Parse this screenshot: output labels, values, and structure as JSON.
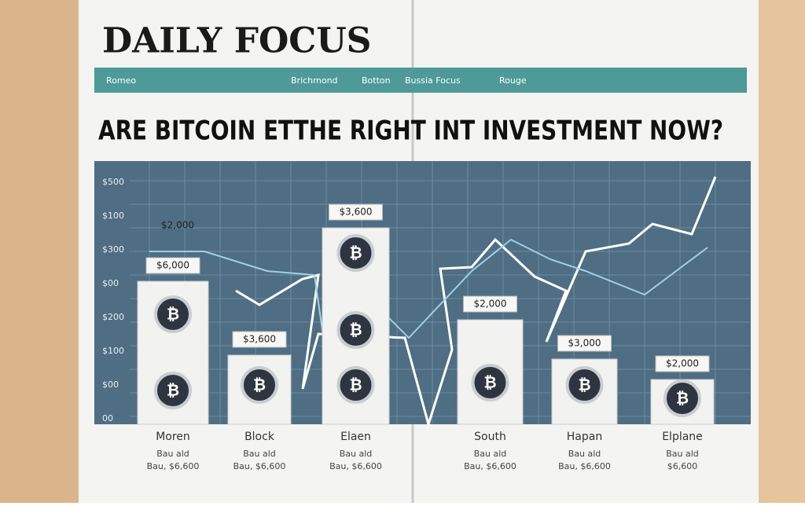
{
  "header": {
    "title": "DAILY FOCUS",
    "nav": [
      "Romeo",
      "Brichmond",
      "Botton",
      "Bussia Focus",
      "Rouge"
    ]
  },
  "headline": "ARE BITCOIN ETTHE RIGHT INT INVESTMENT NOW?",
  "chart": {
    "coin_symbol": "₿",
    "axis_labels": [
      "$500",
      "$100",
      "$300",
      "$00",
      "$200",
      "$100",
      "$00",
      "00"
    ],
    "bars": [
      {
        "label": "Moren",
        "value_label": "$6,000",
        "note": "Bau ald",
        "sub": "Bau, $6,600"
      },
      {
        "label": "Block",
        "value_label": "$3,600",
        "note": "Bau ald",
        "sub": "Bau, $6,600"
      },
      {
        "label": "Elaen",
        "value_label": "$3,600",
        "note": "Bau ald",
        "sub": "Bau, $6,600"
      },
      {
        "label": "South",
        "value_label": "$2,000",
        "note": "Bau ald",
        "sub": "Bau, $6,600"
      },
      {
        "label": "Hapan",
        "value_label": "$3,000",
        "note": "Bau ald",
        "sub": "Bau, $6,600"
      },
      {
        "label": "Elplane",
        "value_label": "$2,000",
        "note": "Bau ald",
        "sub": "$6,600"
      }
    ],
    "callout": "$2,000"
  }
}
